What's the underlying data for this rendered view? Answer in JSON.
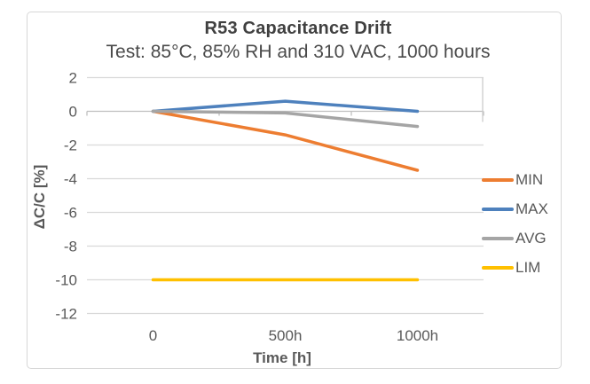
{
  "chart_data": {
    "type": "line",
    "title": "R53 Capacitance Drift",
    "subtitle": "Test: 85°C, 85% RH and 310 VAC, 1000 hours",
    "xlabel": "Time [h]",
    "ylabel": "ΔC/C [%]",
    "categories": [
      "0",
      "500h",
      "1000h"
    ],
    "series": [
      {
        "name": "MIN",
        "color": "#ED7D31",
        "values": [
          0,
          -1.4,
          -3.5
        ]
      },
      {
        "name": "MAX",
        "color": "#4E81BD",
        "values": [
          0,
          0.6,
          0
        ]
      },
      {
        "name": "AVG",
        "color": "#A5A5A5",
        "values": [
          0,
          -0.1,
          -0.9
        ]
      },
      {
        "name": "LIM",
        "color": "#FFC000",
        "values": [
          -10,
          -10,
          -10
        ]
      }
    ],
    "ylim": [
      -12,
      2
    ],
    "ytick_step": 2,
    "grid": true,
    "legend_position": "right",
    "grid_color": "#D9D9D9",
    "axis_color": "#BFBFBF",
    "text_color": "#595959",
    "title_color": "#404040"
  }
}
